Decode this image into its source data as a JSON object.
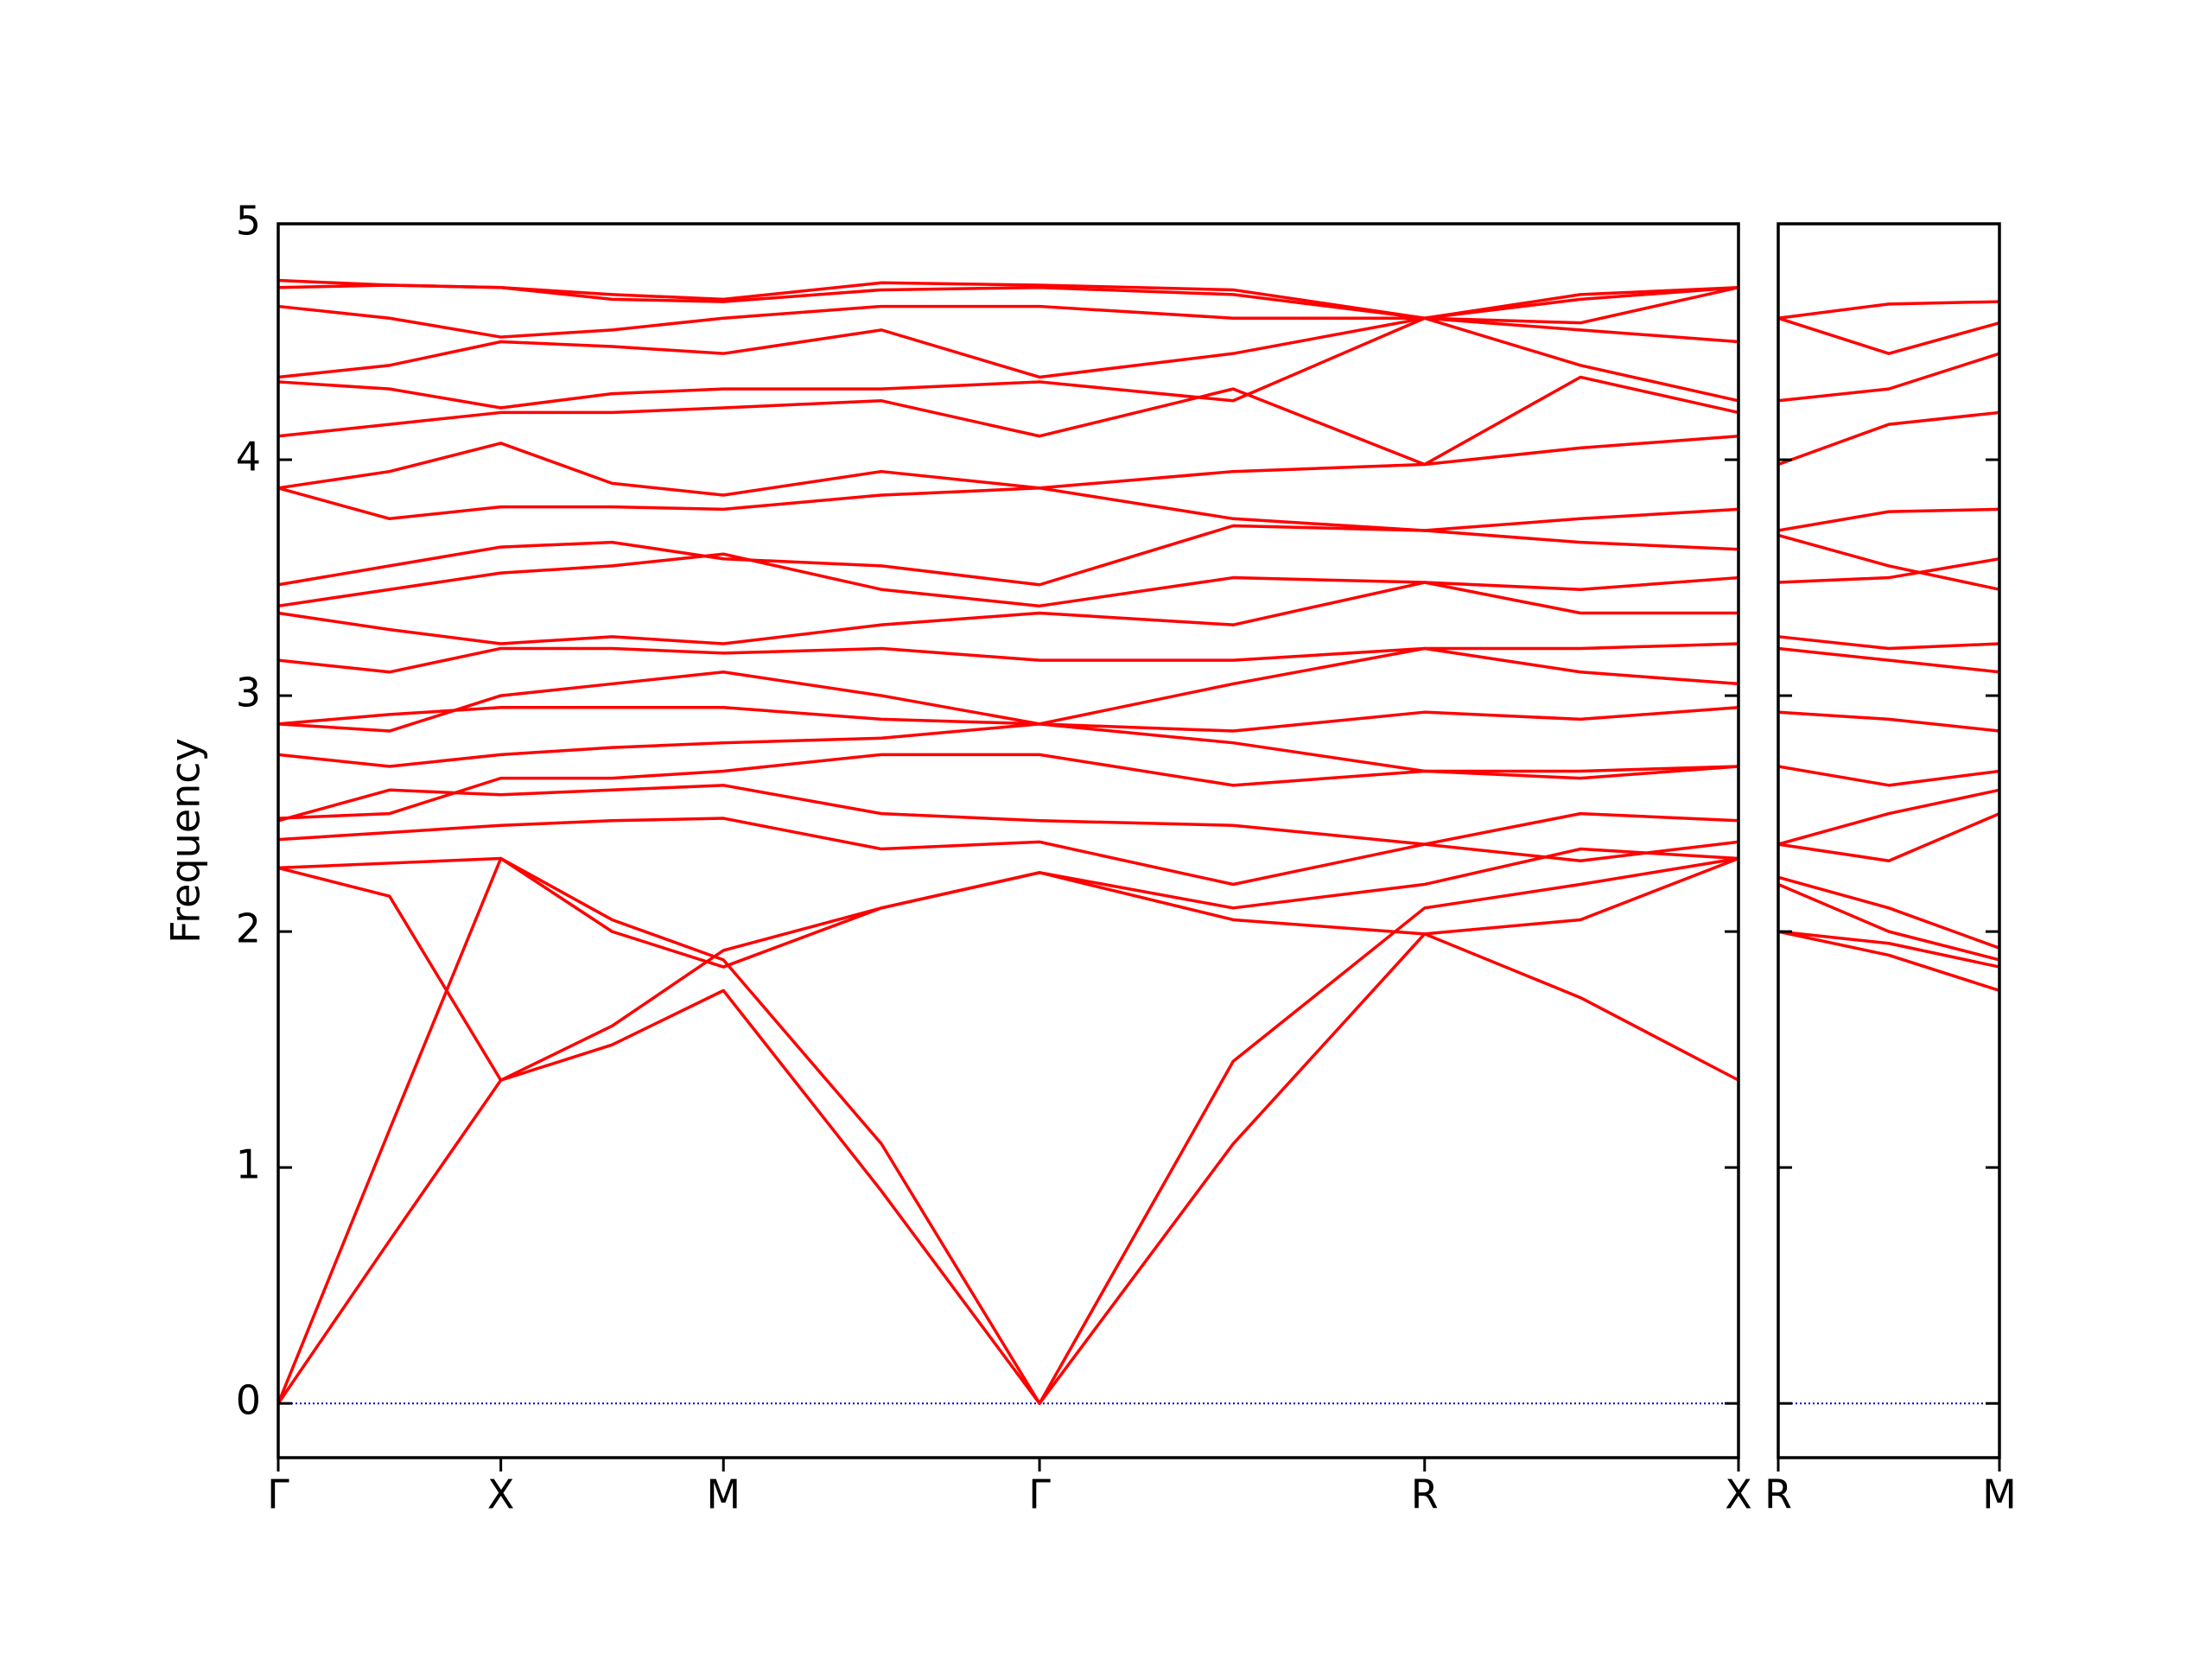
{
  "chart_data": [
    {
      "type": "line",
      "ylabel": "Frequency",
      "color": "#ff0000",
      "zero_line": true,
      "zero_line_color": "#0000cc",
      "x": [
        0,
        0.5,
        1,
        1.5,
        2,
        2.71,
        3.42,
        4.29,
        5.15,
        5.85,
        6.56
      ],
      "xlim": [
        0,
        6.56
      ],
      "xticks": [
        {
          "value": 0,
          "label": "Γ"
        },
        {
          "value": 1,
          "label": "X"
        },
        {
          "value": 2,
          "label": "M"
        },
        {
          "value": 3.42,
          "label": "Γ"
        },
        {
          "value": 5.15,
          "label": "R"
        },
        {
          "value": 6.56,
          "label": "X"
        }
      ],
      "ylim": [
        -0.23,
        5
      ],
      "yticks": [
        0,
        1,
        2,
        3,
        4,
        5
      ],
      "show_ytick_labels": true,
      "series": [
        {
          "values": [
            0,
            0.69,
            1.37,
            1.52,
            1.75,
            0.9,
            0,
            1.1,
            1.99,
            1.72,
            1.37
          ]
        },
        {
          "values": [
            0,
            1.16,
            2.31,
            2.05,
            1.88,
            1.1,
            0,
            1.45,
            2.1,
            2.2,
            2.31
          ]
        },
        {
          "values": [
            2.27,
            2.15,
            1.37,
            1.6,
            1.92,
            2.1,
            2.25,
            2.05,
            1.99,
            2.05,
            2.31
          ]
        },
        {
          "values": [
            2.27,
            2.29,
            2.31,
            2.0,
            1.85,
            2.1,
            2.25,
            2.1,
            2.2,
            2.35,
            2.31
          ]
        },
        {
          "values": [
            2.39,
            2.42,
            2.45,
            2.47,
            2.48,
            2.35,
            2.38,
            2.2,
            2.37,
            2.3,
            2.38
          ]
        },
        {
          "values": [
            2.47,
            2.6,
            2.58,
            2.6,
            2.62,
            2.5,
            2.47,
            2.45,
            2.37,
            2.5,
            2.47
          ]
        },
        {
          "values": [
            2.48,
            2.5,
            2.65,
            2.65,
            2.68,
            2.75,
            2.75,
            2.62,
            2.68,
            2.65,
            2.7
          ]
        },
        {
          "values": [
            2.75,
            2.7,
            2.75,
            2.78,
            2.8,
            2.82,
            2.88,
            2.8,
            2.68,
            2.68,
            2.7
          ]
        },
        {
          "values": [
            2.88,
            2.92,
            2.95,
            2.95,
            2.95,
            2.9,
            2.88,
            2.85,
            2.93,
            2.9,
            2.95
          ]
        },
        {
          "values": [
            2.88,
            2.85,
            3.0,
            3.05,
            3.1,
            3.0,
            2.88,
            3.05,
            3.2,
            3.1,
            3.05
          ]
        },
        {
          "values": [
            3.15,
            3.1,
            3.2,
            3.2,
            3.18,
            3.2,
            3.15,
            3.15,
            3.2,
            3.2,
            3.22
          ]
        },
        {
          "values": [
            3.35,
            3.28,
            3.22,
            3.25,
            3.22,
            3.3,
            3.35,
            3.3,
            3.48,
            3.35,
            3.35
          ]
        },
        {
          "values": [
            3.38,
            3.45,
            3.52,
            3.55,
            3.6,
            3.45,
            3.38,
            3.5,
            3.48,
            3.45,
            3.5
          ]
        },
        {
          "values": [
            3.47,
            3.55,
            3.63,
            3.65,
            3.58,
            3.55,
            3.47,
            3.72,
            3.7,
            3.65,
            3.62
          ]
        },
        {
          "values": [
            3.88,
            3.75,
            3.8,
            3.8,
            3.79,
            3.85,
            3.88,
            3.75,
            3.7,
            3.75,
            3.79
          ]
        },
        {
          "values": [
            3.88,
            3.95,
            4.07,
            3.9,
            3.85,
            3.95,
            3.88,
            3.95,
            3.98,
            4.05,
            4.1
          ]
        },
        {
          "values": [
            4.1,
            4.15,
            4.2,
            4.2,
            4.22,
            4.25,
            4.1,
            4.3,
            3.98,
            4.35,
            4.2
          ]
        },
        {
          "values": [
            4.33,
            4.3,
            4.22,
            4.28,
            4.3,
            4.3,
            4.33,
            4.25,
            4.6,
            4.4,
            4.25
          ]
        },
        {
          "values": [
            4.35,
            4.4,
            4.5,
            4.48,
            4.45,
            4.55,
            4.35,
            4.45,
            4.6,
            4.55,
            4.5
          ]
        },
        {
          "values": [
            4.65,
            4.6,
            4.52,
            4.55,
            4.6,
            4.65,
            4.65,
            4.6,
            4.6,
            4.58,
            4.73
          ]
        },
        {
          "values": [
            4.73,
            4.74,
            4.73,
            4.68,
            4.67,
            4.72,
            4.73,
            4.7,
            4.6,
            4.7,
            4.73
          ]
        },
        {
          "values": [
            4.76,
            4.74,
            4.73,
            4.7,
            4.68,
            4.75,
            4.74,
            4.72,
            4.6,
            4.68,
            4.73
          ]
        }
      ]
    },
    {
      "type": "line",
      "color": "#ff0000",
      "zero_line": true,
      "zero_line_color": "#0000cc",
      "x": [
        0,
        0.5,
        1
      ],
      "xlim": [
        0,
        1
      ],
      "xticks": [
        {
          "value": 0,
          "label": "R"
        },
        {
          "value": 1,
          "label": "M"
        }
      ],
      "ylim": [
        -0.23,
        5
      ],
      "yticks": [
        0,
        1,
        2,
        3,
        4,
        5
      ],
      "show_ytick_labels": false,
      "series": [
        {
          "values": [
            2.0,
            1.9,
            1.75
          ]
        },
        {
          "values": [
            2.0,
            1.95,
            1.85
          ]
        },
        {
          "values": [
            2.2,
            2.0,
            1.88
          ]
        },
        {
          "values": [
            2.23,
            2.1,
            1.93
          ]
        },
        {
          "values": [
            2.37,
            2.3,
            2.5
          ]
        },
        {
          "values": [
            2.37,
            2.5,
            2.6
          ]
        },
        {
          "values": [
            2.7,
            2.62,
            2.68
          ]
        },
        {
          "values": [
            2.93,
            2.9,
            2.85
          ]
        },
        {
          "values": [
            3.2,
            3.15,
            3.1
          ]
        },
        {
          "values": [
            3.25,
            3.2,
            3.22
          ]
        },
        {
          "values": [
            3.48,
            3.5,
            3.58
          ]
        },
        {
          "values": [
            3.68,
            3.55,
            3.45
          ]
        },
        {
          "values": [
            3.7,
            3.78,
            3.79
          ]
        },
        {
          "values": [
            3.98,
            4.15,
            4.2
          ]
        },
        {
          "values": [
            4.25,
            4.3,
            4.45
          ]
        },
        {
          "values": [
            4.6,
            4.45,
            4.58
          ]
        },
        {
          "values": [
            4.6,
            4.66,
            4.67
          ]
        }
      ]
    }
  ]
}
